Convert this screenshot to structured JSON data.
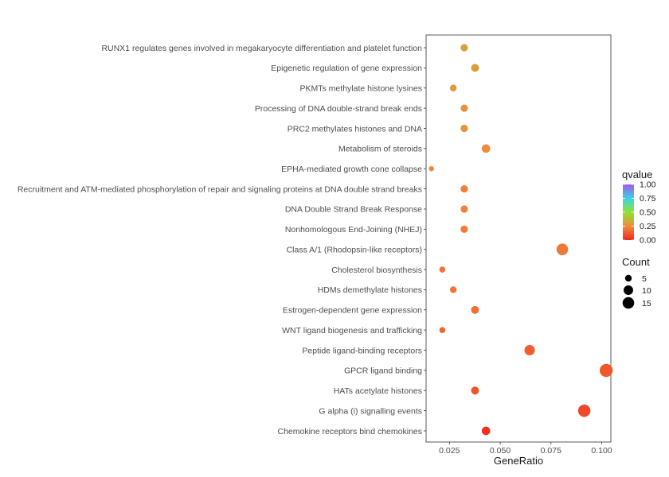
{
  "chart_data": {
    "type": "scatter",
    "xlabel": "GeneRatio",
    "ylabel": "",
    "xlim": [
      0.0135,
      0.1045
    ],
    "x_ticks": [
      0.025,
      0.05,
      0.075,
      0.1
    ],
    "x_tick_labels": [
      "0.025",
      "0.050",
      "0.075",
      "0.100"
    ],
    "grid": false,
    "legend_position": "right",
    "points": [
      {
        "term": "RUNX1 regulates genes involved in megakaryocyte differentiation and platelet function",
        "x": 0.0323,
        "count": 6,
        "qvalue": 0.3
      },
      {
        "term": "Epigenetic regulation of gene expression",
        "x": 0.0376,
        "count": 7,
        "qvalue": 0.3
      },
      {
        "term": "PKMTs methylate histone lysines",
        "x": 0.0269,
        "count": 5,
        "qvalue": 0.28
      },
      {
        "term": "Processing of DNA double-strand break ends",
        "x": 0.0323,
        "count": 6,
        "qvalue": 0.27
      },
      {
        "term": "PRC2 methylates histones and DNA",
        "x": 0.0323,
        "count": 6,
        "qvalue": 0.27
      },
      {
        "term": "Metabolism of steroids",
        "x": 0.043,
        "count": 8,
        "qvalue": 0.25
      },
      {
        "term": "EPHA-mediated growth cone collapse",
        "x": 0.0161,
        "count": 3,
        "qvalue": 0.24
      },
      {
        "term": "Recruitment and ATM-mediated phosphorylation of repair and signaling proteins at DNA double strand breaks",
        "x": 0.0323,
        "count": 6,
        "qvalue": 0.22
      },
      {
        "term": "DNA Double Strand Break Response",
        "x": 0.0323,
        "count": 6,
        "qvalue": 0.22
      },
      {
        "term": "Nonhomologous End-Joining (NHEJ)",
        "x": 0.0323,
        "count": 6,
        "qvalue": 0.21
      },
      {
        "term": "Class A/1 (Rhodopsin-like receptors)",
        "x": 0.0806,
        "count": 15,
        "qvalue": 0.2
      },
      {
        "term": "Cholesterol biosynthesis",
        "x": 0.0215,
        "count": 4,
        "qvalue": 0.19
      },
      {
        "term": "HDMs demethylate histones",
        "x": 0.0269,
        "count": 5,
        "qvalue": 0.19
      },
      {
        "term": "Estrogen-dependent gene expression",
        "x": 0.0376,
        "count": 7,
        "qvalue": 0.18
      },
      {
        "term": "WNT ligand biogenesis and trafficking",
        "x": 0.0215,
        "count": 4,
        "qvalue": 0.15
      },
      {
        "term": "Peptide ligand-binding receptors",
        "x": 0.0645,
        "count": 12,
        "qvalue": 0.13
      },
      {
        "term": "GPCR ligand binding",
        "x": 0.1022,
        "count": 19,
        "qvalue": 0.12
      },
      {
        "term": "HATs acetylate histones",
        "x": 0.0376,
        "count": 7,
        "qvalue": 0.11
      },
      {
        "term": "G alpha (i) signalling events",
        "x": 0.0914,
        "count": 17,
        "qvalue": 0.08
      },
      {
        "term": "Chemokine receptors bind chemokines",
        "x": 0.043,
        "count": 8,
        "qvalue": 0.02
      }
    ],
    "legend_color": {
      "title": "qvalue",
      "range": [
        0,
        1
      ],
      "ticks": [
        "1.00",
        "0.75",
        "0.50",
        "0.25",
        "0.00"
      ],
      "colors": [
        "#f0281e",
        "#f08c3c",
        "#8ce62d",
        "#3cd2e6",
        "#a05ae6"
      ]
    },
    "legend_size": {
      "title": "Count",
      "items": [
        {
          "label": "5",
          "value": 5
        },
        {
          "label": "10",
          "value": 10
        },
        {
          "label": "15",
          "value": 15
        }
      ]
    }
  }
}
